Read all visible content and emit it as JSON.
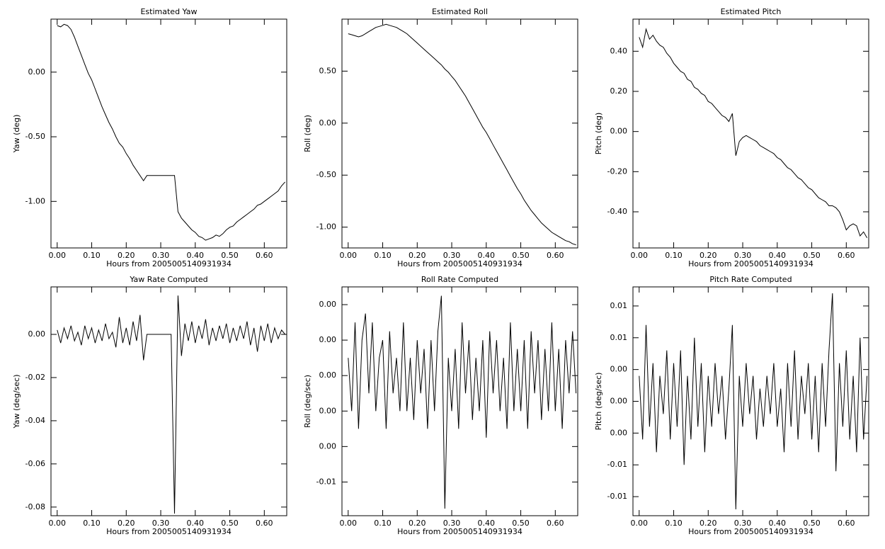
{
  "chart_data": [
    {
      "type": "line",
      "title": "Estimated Yaw",
      "xlabel": "Hours from 2005005140931934",
      "ylabel": "Yaw (deg)",
      "color": "#000000",
      "x": [
        0,
        0.01,
        0.02,
        0.03,
        0.04,
        0.05,
        0.06,
        0.07,
        0.08,
        0.09,
        0.1,
        0.11,
        0.12,
        0.13,
        0.14,
        0.15,
        0.16,
        0.17,
        0.18,
        0.19,
        0.2,
        0.21,
        0.22,
        0.23,
        0.24,
        0.25,
        0.26,
        0.27,
        0.28,
        0.29,
        0.3,
        0.31,
        0.32,
        0.33,
        0.34,
        0.35,
        0.36,
        0.37,
        0.38,
        0.39,
        0.4,
        0.41,
        0.42,
        0.43,
        0.44,
        0.45,
        0.46,
        0.47,
        0.48,
        0.49,
        0.5,
        0.51,
        0.52,
        0.53,
        0.54,
        0.55,
        0.56,
        0.57,
        0.58,
        0.59,
        0.6,
        0.61,
        0.62,
        0.63,
        0.64,
        0.65,
        0.66
      ],
      "values": [
        0.36,
        0.35,
        0.37,
        0.36,
        0.33,
        0.27,
        0.2,
        0.13,
        0.06,
        -0.01,
        -0.06,
        -0.13,
        -0.2,
        -0.27,
        -0.33,
        -0.39,
        -0.44,
        -0.5,
        -0.55,
        -0.58,
        -0.63,
        -0.67,
        -0.72,
        -0.76,
        -0.8,
        -0.84,
        -0.8,
        -0.8,
        -0.8,
        -0.8,
        -0.8,
        -0.8,
        -0.8,
        -0.8,
        -0.8,
        -1.08,
        -1.13,
        -1.16,
        -1.19,
        -1.22,
        -1.24,
        -1.27,
        -1.28,
        -1.3,
        -1.29,
        -1.28,
        -1.26,
        -1.27,
        -1.25,
        -1.22,
        -1.2,
        -1.19,
        -1.16,
        -1.14,
        -1.12,
        -1.1,
        -1.08,
        -1.06,
        -1.03,
        -1.02,
        -1.0,
        -0.98,
        -0.96,
        -0.94,
        -0.92,
        -0.88,
        -0.85
      ],
      "xlim": [
        -0.018,
        0.665
      ],
      "ylim": [
        -1.36,
        0.41
      ],
      "xticks": [
        {
          "value": 0,
          "label": "0.00"
        },
        {
          "value": 0.1,
          "label": "0.10"
        },
        {
          "value": 0.2,
          "label": "0.20"
        },
        {
          "value": 0.3,
          "label": "0.30"
        },
        {
          "value": 0.4,
          "label": "0.40"
        },
        {
          "value": 0.5,
          "label": "0.50"
        },
        {
          "value": 0.6,
          "label": "0.60"
        }
      ],
      "yticks": [
        {
          "value": 0,
          "label": "0.00"
        },
        {
          "value": -0.5,
          "label": "-0.50"
        },
        {
          "value": -1,
          "label": "-1.00"
        }
      ]
    },
    {
      "type": "line",
      "title": "Estimated Roll",
      "xlabel": "Hours from 2005005140931934",
      "ylabel": "Roll (deg)",
      "color": "#000000",
      "x": [
        0,
        0.01,
        0.02,
        0.03,
        0.04,
        0.05,
        0.06,
        0.07,
        0.08,
        0.09,
        0.1,
        0.11,
        0.12,
        0.13,
        0.14,
        0.15,
        0.16,
        0.17,
        0.18,
        0.19,
        0.2,
        0.21,
        0.22,
        0.23,
        0.24,
        0.25,
        0.26,
        0.27,
        0.28,
        0.29,
        0.3,
        0.31,
        0.32,
        0.33,
        0.34,
        0.35,
        0.36,
        0.37,
        0.38,
        0.39,
        0.4,
        0.41,
        0.42,
        0.43,
        0.44,
        0.45,
        0.46,
        0.47,
        0.48,
        0.49,
        0.5,
        0.51,
        0.52,
        0.53,
        0.54,
        0.55,
        0.56,
        0.57,
        0.58,
        0.59,
        0.6,
        0.61,
        0.62,
        0.63,
        0.64,
        0.65,
        0.66
      ],
      "values": [
        0.86,
        0.85,
        0.84,
        0.83,
        0.84,
        0.86,
        0.88,
        0.9,
        0.92,
        0.93,
        0.94,
        0.95,
        0.94,
        0.93,
        0.92,
        0.9,
        0.88,
        0.86,
        0.83,
        0.8,
        0.77,
        0.74,
        0.71,
        0.68,
        0.65,
        0.62,
        0.59,
        0.56,
        0.52,
        0.49,
        0.45,
        0.41,
        0.36,
        0.31,
        0.26,
        0.2,
        0.14,
        0.08,
        0.02,
        -0.04,
        -0.09,
        -0.15,
        -0.21,
        -0.27,
        -0.33,
        -0.39,
        -0.45,
        -0.51,
        -0.57,
        -0.63,
        -0.68,
        -0.74,
        -0.79,
        -0.84,
        -0.88,
        -0.92,
        -0.96,
        -0.99,
        -1.02,
        -1.05,
        -1.07,
        -1.09,
        -1.11,
        -1.13,
        -1.14,
        -1.16,
        -1.17
      ],
      "xlim": [
        -0.018,
        0.665
      ],
      "ylim": [
        -1.2,
        1.0
      ],
      "xticks": [
        {
          "value": 0,
          "label": "0.00"
        },
        {
          "value": 0.1,
          "label": "0.10"
        },
        {
          "value": 0.2,
          "label": "0.20"
        },
        {
          "value": 0.3,
          "label": "0.30"
        },
        {
          "value": 0.4,
          "label": "0.40"
        },
        {
          "value": 0.5,
          "label": "0.50"
        },
        {
          "value": 0.6,
          "label": "0.60"
        }
      ],
      "yticks": [
        {
          "value": 0.5,
          "label": "0.50"
        },
        {
          "value": 0,
          "label": "0.00"
        },
        {
          "value": -0.5,
          "label": "-0.50"
        },
        {
          "value": -1,
          "label": "-1.00"
        }
      ]
    },
    {
      "type": "line",
      "title": "Estimated Pitch",
      "xlabel": "Hours from 2005005140931934",
      "ylabel": "Pitch (deg)",
      "color": "#000000",
      "x": [
        0,
        0.01,
        0.02,
        0.03,
        0.04,
        0.05,
        0.06,
        0.07,
        0.08,
        0.09,
        0.1,
        0.11,
        0.12,
        0.13,
        0.14,
        0.15,
        0.16,
        0.17,
        0.18,
        0.19,
        0.2,
        0.21,
        0.22,
        0.23,
        0.24,
        0.25,
        0.26,
        0.27,
        0.28,
        0.29,
        0.3,
        0.31,
        0.32,
        0.33,
        0.34,
        0.35,
        0.36,
        0.37,
        0.38,
        0.39,
        0.4,
        0.41,
        0.42,
        0.43,
        0.44,
        0.45,
        0.46,
        0.47,
        0.48,
        0.49,
        0.5,
        0.51,
        0.52,
        0.53,
        0.54,
        0.55,
        0.56,
        0.57,
        0.58,
        0.59,
        0.6,
        0.61,
        0.62,
        0.63,
        0.64,
        0.65,
        0.66
      ],
      "values": [
        0.47,
        0.42,
        0.51,
        0.46,
        0.48,
        0.45,
        0.43,
        0.42,
        0.39,
        0.37,
        0.34,
        0.32,
        0.3,
        0.29,
        0.26,
        0.25,
        0.22,
        0.21,
        0.19,
        0.18,
        0.15,
        0.14,
        0.12,
        0.1,
        0.08,
        0.07,
        0.05,
        0.09,
        -0.12,
        -0.05,
        -0.03,
        -0.02,
        -0.03,
        -0.04,
        -0.05,
        -0.07,
        -0.08,
        -0.09,
        -0.1,
        -0.11,
        -0.13,
        -0.14,
        -0.16,
        -0.18,
        -0.19,
        -0.21,
        -0.23,
        -0.24,
        -0.26,
        -0.28,
        -0.29,
        -0.31,
        -0.33,
        -0.34,
        -0.35,
        -0.37,
        -0.37,
        -0.38,
        -0.4,
        -0.44,
        -0.49,
        -0.47,
        -0.46,
        -0.47,
        -0.52,
        -0.5,
        -0.53
      ],
      "xlim": [
        -0.018,
        0.665
      ],
      "ylim": [
        -0.58,
        0.56
      ],
      "xticks": [
        {
          "value": 0,
          "label": "0.00"
        },
        {
          "value": 0.1,
          "label": "0.10"
        },
        {
          "value": 0.2,
          "label": "0.20"
        },
        {
          "value": 0.3,
          "label": "0.30"
        },
        {
          "value": 0.4,
          "label": "0.40"
        },
        {
          "value": 0.5,
          "label": "0.50"
        },
        {
          "value": 0.6,
          "label": "0.60"
        }
      ],
      "yticks": [
        {
          "value": 0.4,
          "label": "0.40"
        },
        {
          "value": 0.2,
          "label": "0.20"
        },
        {
          "value": 0,
          "label": "0.00"
        },
        {
          "value": -0.2,
          "label": "-0.20"
        },
        {
          "value": -0.4,
          "label": "-0.40"
        }
      ]
    },
    {
      "type": "line",
      "title": "Yaw Rate Computed",
      "xlabel": "Hours from 2005005140931934",
      "ylabel": "Yaw (deg/sec)",
      "color": "#000000",
      "x": [
        0,
        0.01,
        0.02,
        0.03,
        0.04,
        0.05,
        0.06,
        0.07,
        0.08,
        0.09,
        0.1,
        0.11,
        0.12,
        0.13,
        0.14,
        0.15,
        0.16,
        0.17,
        0.18,
        0.19,
        0.2,
        0.21,
        0.22,
        0.23,
        0.24,
        0.25,
        0.26,
        0.27,
        0.28,
        0.29,
        0.3,
        0.31,
        0.32,
        0.33,
        0.34,
        0.35,
        0.36,
        0.37,
        0.38,
        0.39,
        0.4,
        0.41,
        0.42,
        0.43,
        0.44,
        0.45,
        0.46,
        0.47,
        0.48,
        0.49,
        0.5,
        0.51,
        0.52,
        0.53,
        0.54,
        0.55,
        0.56,
        0.57,
        0.58,
        0.59,
        0.6,
        0.61,
        0.62,
        0.63,
        0.64,
        0.65,
        0.66
      ],
      "values": [
        0.002,
        -0.004,
        0.003,
        -0.002,
        0.004,
        -0.003,
        0.001,
        -0.005,
        0.004,
        -0.002,
        0.003,
        -0.004,
        0.002,
        -0.003,
        0.005,
        -0.002,
        0.001,
        -0.006,
        0.008,
        -0.004,
        0.003,
        -0.005,
        0.006,
        -0.003,
        0.009,
        -0.012,
        0,
        0,
        0,
        0,
        0,
        0,
        0,
        0,
        -0.083,
        0.018,
        -0.01,
        0.005,
        -0.003,
        0.006,
        -0.004,
        0.004,
        -0.002,
        0.007,
        -0.005,
        0.003,
        -0.003,
        0.004,
        -0.002,
        0.005,
        -0.004,
        0.003,
        -0.003,
        0.004,
        -0.002,
        0.006,
        -0.005,
        0.003,
        -0.008,
        0.004,
        -0.003,
        0.005,
        -0.004,
        0.003,
        -0.002,
        0.002,
        0
      ],
      "xlim": [
        -0.018,
        0.665
      ],
      "ylim": [
        -0.084,
        0.022
      ],
      "xticks": [
        {
          "value": 0,
          "label": "0.00"
        },
        {
          "value": 0.1,
          "label": "0.10"
        },
        {
          "value": 0.2,
          "label": "0.20"
        },
        {
          "value": 0.3,
          "label": "0.30"
        },
        {
          "value": 0.4,
          "label": "0.40"
        },
        {
          "value": 0.5,
          "label": "0.50"
        },
        {
          "value": 0.6,
          "label": "0.60"
        }
      ],
      "yticks": [
        {
          "value": 0,
          "label": "0.00"
        },
        {
          "value": -0.02,
          "label": "-0.02"
        },
        {
          "value": -0.04,
          "label": "-0.04"
        },
        {
          "value": -0.06,
          "label": "-0.06"
        },
        {
          "value": -0.08,
          "label": "-0.08"
        }
      ]
    },
    {
      "type": "line",
      "title": "Roll Rate Computed",
      "xlabel": "Hours from 2005005140931934",
      "ylabel": "Roll (deg/sec)",
      "color": "#000000",
      "x": [
        0,
        0.01,
        0.02,
        0.03,
        0.04,
        0.05,
        0.06,
        0.07,
        0.08,
        0.09,
        0.1,
        0.11,
        0.12,
        0.13,
        0.14,
        0.15,
        0.16,
        0.17,
        0.18,
        0.19,
        0.2,
        0.21,
        0.22,
        0.23,
        0.24,
        0.25,
        0.26,
        0.27,
        0.28,
        0.29,
        0.3,
        0.31,
        0.32,
        0.33,
        0.34,
        0.35,
        0.36,
        0.37,
        0.38,
        0.39,
        0.4,
        0.41,
        0.42,
        0.43,
        0.44,
        0.45,
        0.46,
        0.47,
        0.48,
        0.49,
        0.5,
        0.51,
        0.52,
        0.53,
        0.54,
        0.55,
        0.56,
        0.57,
        0.58,
        0.59,
        0.6,
        0.61,
        0.62,
        0.63,
        0.64,
        0.65,
        0.66
      ],
      "values": [
        0.001,
        -0.002,
        0.003,
        -0.003,
        0.002,
        0.0035,
        -0.001,
        0.003,
        -0.002,
        0.001,
        0.002,
        -0.003,
        0.0025,
        -0.001,
        0.001,
        -0.002,
        0.003,
        -0.002,
        0.001,
        -0.0025,
        0.002,
        -0.001,
        0.0015,
        -0.003,
        0.002,
        -0.002,
        0.0025,
        0.0045,
        -0.0075,
        0.001,
        -0.002,
        0.0015,
        -0.003,
        0.003,
        -0.001,
        0.002,
        -0.0025,
        0.001,
        -0.002,
        0.002,
        -0.0035,
        0.0025,
        -0.001,
        0.002,
        -0.002,
        0.001,
        -0.003,
        0.003,
        -0.002,
        0.0015,
        -0.002,
        0.002,
        -0.003,
        0.0025,
        -0.001,
        0.002,
        -0.0025,
        0.0015,
        -0.002,
        0.003,
        -0.002,
        0.0015,
        -0.003,
        0.002,
        -0.001,
        0.0025,
        -0.001
      ],
      "xlim": [
        -0.018,
        0.665
      ],
      "ylim": [
        -0.0079,
        0.005
      ],
      "xticks": [
        {
          "value": 0,
          "label": "0.00"
        },
        {
          "value": 0.1,
          "label": "0.10"
        },
        {
          "value": 0.2,
          "label": "0.20"
        },
        {
          "value": 0.3,
          "label": "0.30"
        },
        {
          "value": 0.4,
          "label": "0.40"
        },
        {
          "value": 0.5,
          "label": "0.50"
        },
        {
          "value": 0.6,
          "label": "0.60"
        }
      ],
      "yticks": [
        {
          "value": 0.004,
          "label": "0.00"
        },
        {
          "value": 0.002,
          "label": "0.00"
        },
        {
          "value": 0,
          "label": "0.00"
        },
        {
          "value": -0.002,
          "label": "0.00"
        },
        {
          "value": -0.004,
          "label": "0.00"
        },
        {
          "value": -0.006,
          "label": "-0.01"
        }
      ]
    },
    {
      "type": "line",
      "title": "Pitch Rate Computed",
      "xlabel": "Hours from 2005005140931934",
      "ylabel": "Pitch (deg/sec)",
      "color": "#000000",
      "x": [
        0,
        0.01,
        0.02,
        0.03,
        0.04,
        0.05,
        0.06,
        0.07,
        0.08,
        0.09,
        0.1,
        0.11,
        0.12,
        0.13,
        0.14,
        0.15,
        0.16,
        0.17,
        0.18,
        0.19,
        0.2,
        0.21,
        0.22,
        0.23,
        0.24,
        0.25,
        0.26,
        0.27,
        0.28,
        0.29,
        0.3,
        0.31,
        0.32,
        0.33,
        0.34,
        0.35,
        0.36,
        0.37,
        0.38,
        0.39,
        0.4,
        0.41,
        0.42,
        0.43,
        0.44,
        0.45,
        0.46,
        0.47,
        0.48,
        0.49,
        0.5,
        0.51,
        0.52,
        0.53,
        0.54,
        0.55,
        0.56,
        0.57,
        0.58,
        0.59,
        0.6,
        0.61,
        0.62,
        0.63,
        0.64,
        0.65,
        0.66
      ],
      "values": [
        0.002,
        -0.003,
        0.006,
        -0.002,
        0.003,
        -0.004,
        0.002,
        -0.001,
        0.004,
        -0.003,
        0.003,
        -0.002,
        0.004,
        -0.005,
        0.002,
        -0.003,
        0.005,
        -0.002,
        0.003,
        -0.004,
        0.002,
        -0.002,
        0.003,
        -0.001,
        0.002,
        -0.003,
        0.001,
        0.006,
        -0.0085,
        0.002,
        -0.002,
        0.003,
        -0.001,
        0.002,
        -0.003,
        0.001,
        -0.002,
        0.002,
        -0.001,
        0.003,
        -0.002,
        0.001,
        -0.004,
        0.003,
        -0.002,
        0.004,
        -0.003,
        0.002,
        -0.001,
        0.003,
        -0.003,
        0.002,
        -0.004,
        0.003,
        -0.002,
        0.004,
        0.0085,
        -0.0055,
        0.003,
        -0.002,
        0.004,
        -0.003,
        0.002,
        -0.004,
        0.005,
        -0.003,
        0.002
      ],
      "xlim": [
        -0.018,
        0.665
      ],
      "ylim": [
        -0.009,
        0.009
      ],
      "xticks": [
        {
          "value": 0,
          "label": "0.00"
        },
        {
          "value": 0.1,
          "label": "0.10"
        },
        {
          "value": 0.2,
          "label": "0.20"
        },
        {
          "value": 0.3,
          "label": "0.30"
        },
        {
          "value": 0.4,
          "label": "0.40"
        },
        {
          "value": 0.5,
          "label": "0.50"
        },
        {
          "value": 0.6,
          "label": "0.60"
        }
      ],
      "yticks": [
        {
          "value": 0.0075,
          "label": "0.01"
        },
        {
          "value": 0.005,
          "label": "0.01"
        },
        {
          "value": 0.0025,
          "label": "0.00"
        },
        {
          "value": 0,
          "label": "0.00"
        },
        {
          "value": -0.0025,
          "label": "0.00"
        },
        {
          "value": -0.005,
          "label": "-0.01"
        },
        {
          "value": -0.0075,
          "label": "-0.01"
        }
      ]
    }
  ]
}
